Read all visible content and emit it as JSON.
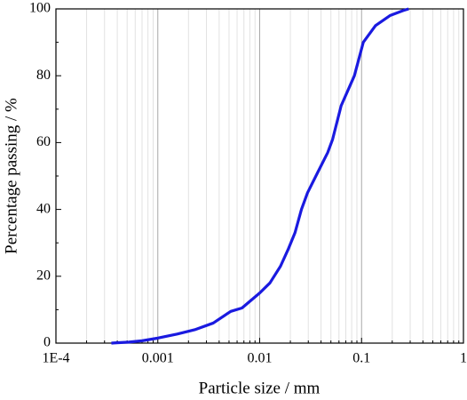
{
  "chart_data": {
    "type": "line",
    "log_x": true,
    "grid": true,
    "color": "#1a1ae0",
    "xlabel": "Particle size / mm",
    "ylabel": "Percentage passing / %",
    "xlim": [
      0.0001,
      1
    ],
    "ylim": [
      0,
      100
    ],
    "xticks": [
      {
        "value": 0.0001,
        "label": "1E-4"
      },
      0.001,
      0.01,
      0.1,
      1
    ],
    "xminor_ticks": [
      0.0002,
      0.0003,
      0.0004,
      0.0005,
      0.0006,
      0.0007,
      0.0008,
      0.0009,
      0.002,
      0.003,
      0.004,
      0.005,
      0.006,
      0.007,
      0.008,
      0.009,
      0.02,
      0.03,
      0.04,
      0.05,
      0.06,
      0.07,
      0.08,
      0.09,
      0.2,
      0.3,
      0.4,
      0.5,
      0.6,
      0.7,
      0.8,
      0.9
    ],
    "yticks": [
      0,
      20,
      40,
      60,
      80,
      100
    ],
    "yminor_ticks": [
      10,
      30,
      50,
      70,
      90
    ],
    "x": [
      0.00035,
      0.00052,
      0.0007,
      0.001,
      0.00155,
      0.0023,
      0.0035,
      0.0052,
      0.0067,
      0.01,
      0.0126,
      0.016,
      0.019,
      0.0222,
      0.0257,
      0.0295,
      0.037,
      0.0465,
      0.052,
      0.063,
      0.085,
      0.104,
      0.137,
      0.19,
      0.256,
      0.29
    ],
    "values": [
      0,
      0.3,
      0.7,
      1.5,
      2.7,
      4,
      6,
      9.5,
      10.5,
      15,
      18,
      23,
      28,
      33,
      40,
      45,
      51,
      57,
      61,
      71,
      80,
      90,
      95,
      98,
      99.5,
      100
    ]
  }
}
